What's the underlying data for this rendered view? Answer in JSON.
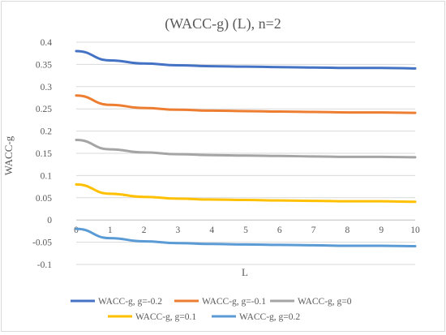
{
  "chart_data": {
    "type": "line",
    "title": "(WACC-g) (L), n=2",
    "xlabel": "L",
    "ylabel": "WACC-g",
    "x": [
      0,
      1,
      2,
      3,
      4,
      5,
      6,
      7,
      8,
      9,
      10
    ],
    "ylim": [
      -0.1,
      0.4
    ],
    "yticks": [
      "0.4",
      "0.35",
      "0.3",
      "0.25",
      "0.2",
      "0.15",
      "0.1",
      "0.05",
      "0",
      "-0.05",
      "-0.1"
    ],
    "yticks_values": [
      0.4,
      0.35,
      0.3,
      0.25,
      0.2,
      0.15,
      0.1,
      0.05,
      0,
      -0.05,
      -0.1
    ],
    "xticks": [
      "0",
      "1",
      "2",
      "3",
      "4",
      "5",
      "6",
      "7",
      "8",
      "9",
      "10"
    ],
    "grid": "horizontal",
    "legend_position": "bottom",
    "series": [
      {
        "name": "WACC-g, g=-0.2",
        "color": "#4472C4",
        "values": [
          0.38,
          0.359,
          0.352,
          0.348,
          0.346,
          0.345,
          0.344,
          0.343,
          0.342,
          0.342,
          0.341
        ]
      },
      {
        "name": "WACC-g, g=-0.1",
        "color": "#ED7D31",
        "values": [
          0.28,
          0.259,
          0.252,
          0.248,
          0.246,
          0.245,
          0.244,
          0.243,
          0.242,
          0.242,
          0.241
        ]
      },
      {
        "name": "WACC-g, g=0",
        "color": "#A5A5A5",
        "values": [
          0.18,
          0.159,
          0.152,
          0.148,
          0.146,
          0.145,
          0.144,
          0.143,
          0.142,
          0.142,
          0.141
        ]
      },
      {
        "name": "WACC-g, g=0.1",
        "color": "#FFC000",
        "values": [
          0.08,
          0.059,
          0.052,
          0.048,
          0.046,
          0.045,
          0.044,
          0.043,
          0.042,
          0.042,
          0.041
        ]
      },
      {
        "name": "WACC-g, g=0.2",
        "color": "#5B9BD5",
        "values": [
          -0.02,
          -0.041,
          -0.048,
          -0.052,
          -0.054,
          -0.055,
          -0.056,
          -0.057,
          -0.058,
          -0.058,
          -0.059
        ]
      }
    ]
  }
}
